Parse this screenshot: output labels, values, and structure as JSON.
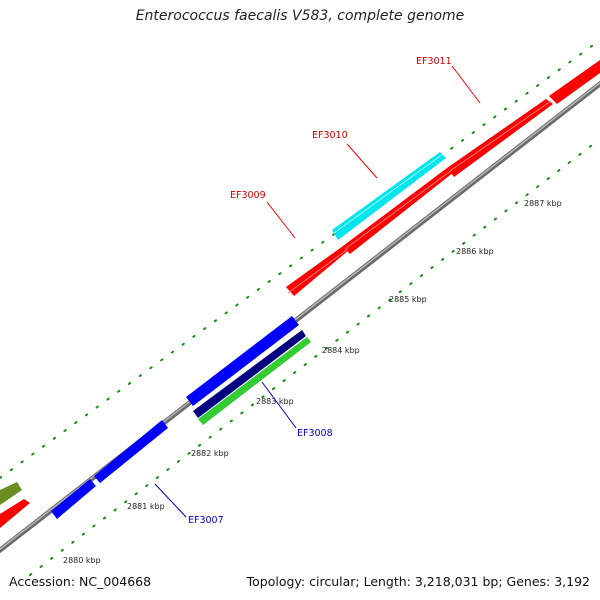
{
  "title": "Enterococcus faecalis V583, complete genome",
  "footer": {
    "accession": "Accession: NC_004668",
    "stats": "Topology: circular; Length: 3,218,031 bp; Genes: 3,192"
  },
  "colors": {
    "backbone": "#888888",
    "tick": "#1a8a1a",
    "forward_gene": "#ff0000",
    "reverse_gene": "#0000ff",
    "dark_gene": "#000080",
    "light_gene": "#33cc33",
    "cyan_gene": "#00e5ee",
    "olive_gene": "#6b8e23",
    "forward_label": "#cc0000",
    "reverse_label": "#0000cc"
  },
  "kbp_ticks": [
    "2880 kbp",
    "2881 kbp",
    "2882 kbp",
    "2883 kbp",
    "2884 kbp",
    "2885 kbp",
    "2886 kbp",
    "2887 kbp"
  ],
  "gene_labels": [
    {
      "text": "EF3011",
      "strand": "forward"
    },
    {
      "text": "EF3010",
      "strand": "forward"
    },
    {
      "text": "EF3009",
      "strand": "forward"
    },
    {
      "text": "EF3008",
      "strand": "reverse"
    },
    {
      "text": "EF3007",
      "strand": "reverse"
    }
  ]
}
